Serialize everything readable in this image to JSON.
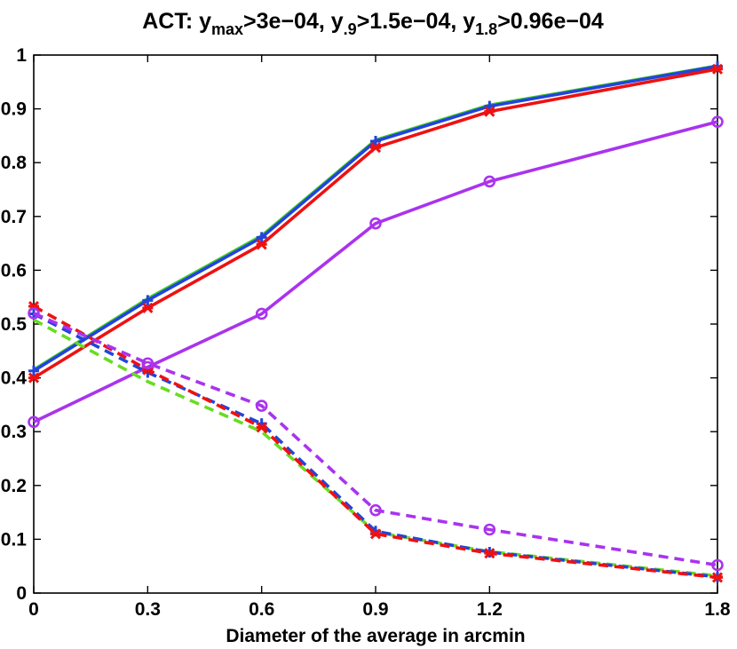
{
  "chart_data": {
    "type": "line",
    "title": {
      "parts": [
        {
          "text": "ACT: y",
          "sub": false
        },
        {
          "text": "max",
          "sub": true
        },
        {
          "text": ">3e−04, y",
          "sub": false
        },
        {
          "text": ".9",
          "sub": true
        },
        {
          "text": ">1.5e−04, y",
          "sub": false
        },
        {
          "text": "1.8",
          "sub": true
        },
        {
          "text": ">0.96e−04",
          "sub": false
        }
      ]
    },
    "xlabel": "Diameter of the average in arcmin",
    "ylabel": "",
    "xlim": [
      0,
      1.8
    ],
    "ylim": [
      0,
      1
    ],
    "xticks": [
      0,
      0.3,
      0.6,
      0.9,
      1.2,
      1.8
    ],
    "xtick_labels": [
      "0",
      "0.3",
      "0.6",
      "0.9",
      "1.2",
      "1.8"
    ],
    "yticks": [
      0,
      0.1,
      0.2,
      0.3,
      0.4,
      0.5,
      0.6,
      0.7,
      0.8,
      0.9,
      1
    ],
    "ytick_labels": [
      "0",
      "0.1",
      "0.2",
      "0.3",
      "0.4",
      "0.5",
      "0.6",
      "0.7",
      "0.8",
      "0.9",
      "1"
    ],
    "grid": false,
    "x": [
      0,
      0.3,
      0.6,
      0.9,
      1.2,
      1.8
    ],
    "series": [
      {
        "name": "green-solid",
        "color": "#44cc22",
        "dash": false,
        "marker": "none",
        "values": [
          0.415,
          0.547,
          0.664,
          0.842,
          0.907,
          0.98
        ]
      },
      {
        "name": "blue-solid",
        "color": "#2244dd",
        "dash": false,
        "marker": "plus",
        "values": [
          0.413,
          0.544,
          0.661,
          0.84,
          0.905,
          0.979
        ]
      },
      {
        "name": "red-solid",
        "color": "#ee1111",
        "dash": false,
        "marker": "star",
        "values": [
          0.4,
          0.53,
          0.648,
          0.828,
          0.895,
          0.974
        ]
      },
      {
        "name": "purple-solid",
        "color": "#aa33ee",
        "dash": false,
        "marker": "circle",
        "values": [
          0.318,
          0.42,
          0.519,
          0.687,
          0.765,
          0.876
        ]
      },
      {
        "name": "green-dashed",
        "color": "#66dd22",
        "dash": true,
        "marker": "none",
        "values": [
          0.508,
          0.393,
          0.3,
          0.113,
          0.077,
          0.032
        ]
      },
      {
        "name": "blue-dashed",
        "color": "#2244dd",
        "dash": true,
        "marker": "plus",
        "values": [
          0.519,
          0.41,
          0.315,
          0.115,
          0.076,
          0.03
        ]
      },
      {
        "name": "red-dashed",
        "color": "#ee1111",
        "dash": true,
        "marker": "star",
        "values": [
          0.533,
          0.415,
          0.308,
          0.11,
          0.074,
          0.029
        ]
      },
      {
        "name": "purple-dashed",
        "color": "#aa33ee",
        "dash": true,
        "marker": "circle",
        "values": [
          0.52,
          0.427,
          0.348,
          0.154,
          0.118,
          0.052
        ]
      }
    ]
  }
}
